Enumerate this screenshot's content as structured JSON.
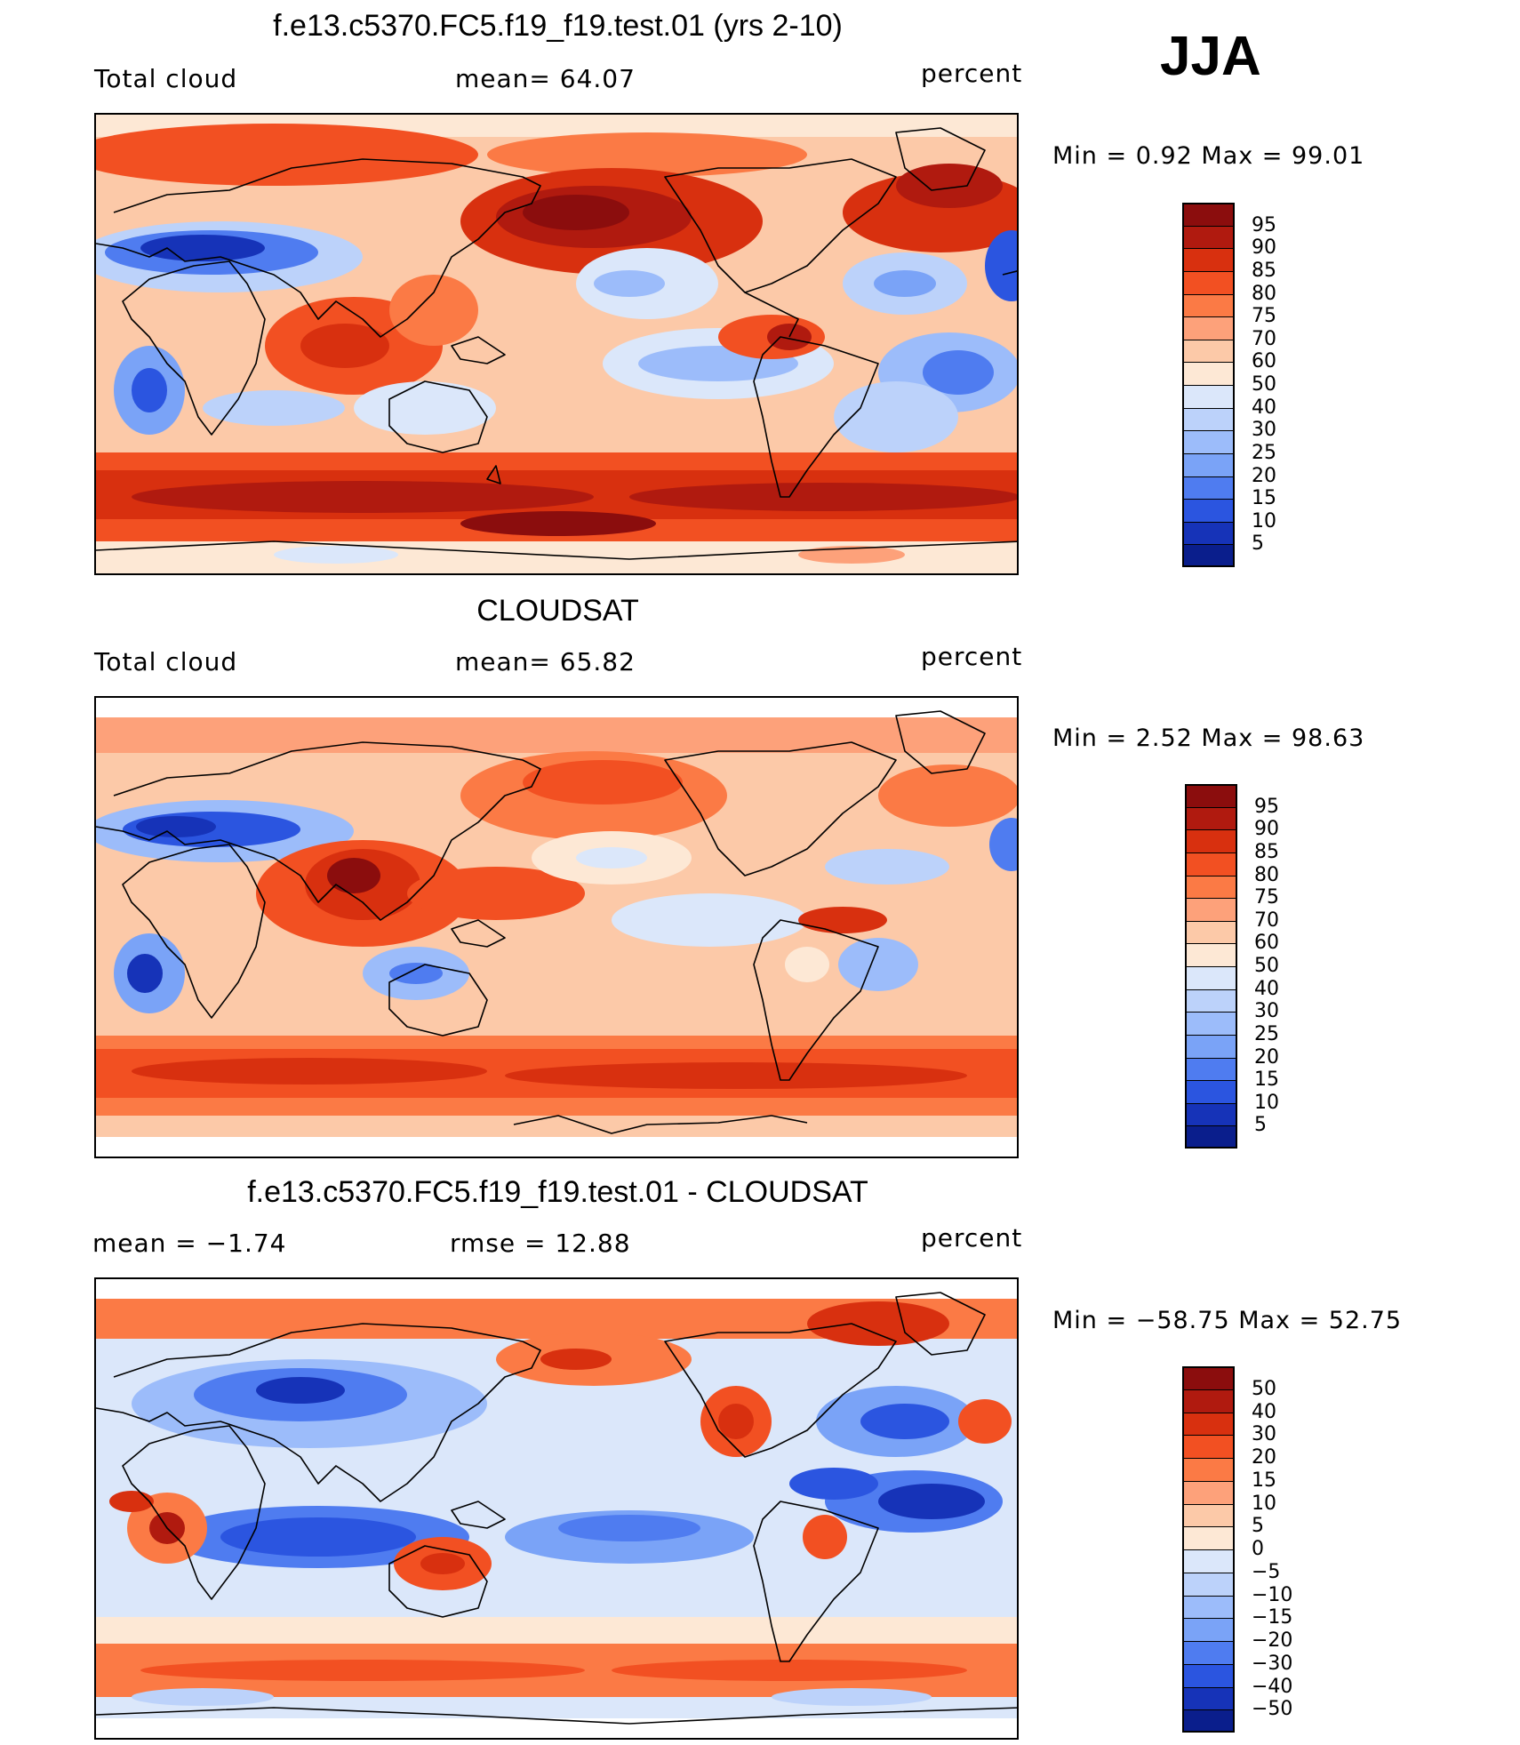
{
  "season": "JJA",
  "panels": [
    {
      "id": "model",
      "title": "f.e13.c5370.FC5.f19_f19.test.01 (yrs 2-10)",
      "left_label": "Total cloud",
      "center_label": "mean=   64.07",
      "units": "percent",
      "min_max": "Min  =     0.92  Max  =    99.01",
      "levels": [
        "95",
        "90",
        "85",
        "80",
        "75",
        "70",
        "60",
        "50",
        "40",
        "30",
        "25",
        "20",
        "15",
        "10",
        "5"
      ],
      "colors": [
        "#8b0d0d",
        "#b01a0f",
        "#d8300f",
        "#f25022",
        "#fb7a45",
        "#fda17a",
        "#fcc9a8",
        "#fde8d5",
        "#dbe7fa",
        "#bcd2fa",
        "#9cbcfa",
        "#7aa3f7",
        "#4f7cf0",
        "#2b55e0",
        "#1633b8",
        "#0a1e8c"
      ]
    },
    {
      "id": "obs",
      "title": "CLOUDSAT",
      "left_label": "Total cloud",
      "center_label": "mean=   65.82",
      "units": "percent",
      "min_max": "Min  =     2.52  Max  =    98.63",
      "levels": [
        "95",
        "90",
        "85",
        "80",
        "75",
        "70",
        "60",
        "50",
        "40",
        "30",
        "25",
        "20",
        "15",
        "10",
        "5"
      ],
      "colors": [
        "#8b0d0d",
        "#b01a0f",
        "#d8300f",
        "#f25022",
        "#fb7a45",
        "#fda17a",
        "#fcc9a8",
        "#fde8d5",
        "#dbe7fa",
        "#bcd2fa",
        "#9cbcfa",
        "#7aa3f7",
        "#4f7cf0",
        "#2b55e0",
        "#1633b8",
        "#0a1e8c"
      ]
    },
    {
      "id": "diff",
      "title": "f.e13.c5370.FC5.f19_f19.test.01 - CLOUDSAT",
      "left_label": "mean  =    −1.74",
      "center_label": "rmse  =    12.88",
      "units": "percent",
      "min_max": "Min  = −58.75  Max  =    52.75",
      "levels": [
        "50",
        "40",
        "30",
        "20",
        "15",
        "10",
        "5",
        "0",
        "−5",
        "−10",
        "−15",
        "−20",
        "−30",
        "−40",
        "−50"
      ],
      "colors": [
        "#8b0d0d",
        "#b01a0f",
        "#d8300f",
        "#f25022",
        "#fb7a45",
        "#fda17a",
        "#fcc9a8",
        "#fde8d5",
        "#dbe7fa",
        "#bcd2fa",
        "#9cbcfa",
        "#7aa3f7",
        "#4f7cf0",
        "#2b55e0",
        "#1633b8",
        "#0a1e8c"
      ]
    }
  ]
}
